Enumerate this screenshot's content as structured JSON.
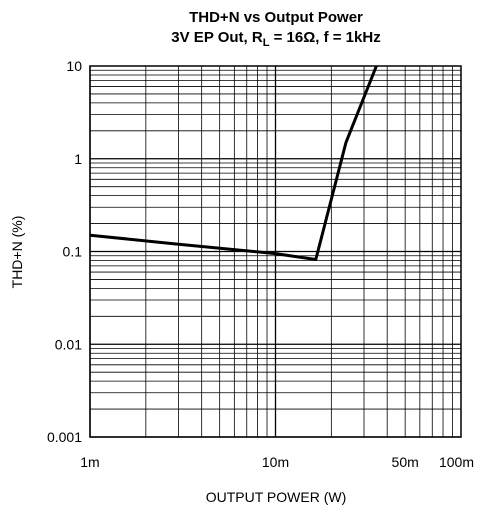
{
  "chart_data": {
    "type": "line",
    "title_line1": "THD+N vs Output Power",
    "title_line2": {
      "prefix": "3V EP Out, R",
      "sub": "L",
      "suffix": " = 16Ω, f = 1kHz"
    },
    "xlabel": "OUTPUT POWER (W)",
    "ylabel": "THD+N (%)",
    "x_scale": "log",
    "y_scale": "log",
    "xlim": [
      0.001,
      0.1
    ],
    "ylim": [
      0.001,
      10
    ],
    "grid": true,
    "x_ticks": [
      {
        "value": 0.001,
        "label": "1m"
      },
      {
        "value": 0.01,
        "label": "10m"
      },
      {
        "value": 0.05,
        "label": "50m"
      },
      {
        "value": 0.1,
        "label": "100m"
      }
    ],
    "y_ticks": [
      {
        "value": 10,
        "label": "10"
      },
      {
        "value": 1,
        "label": "1"
      },
      {
        "value": 0.1,
        "label": "0.1"
      },
      {
        "value": 0.01,
        "label": "0.01"
      },
      {
        "value": 0.001,
        "label": "0.001"
      }
    ],
    "series": [
      {
        "color": "#000000",
        "points": [
          {
            "x": 0.001,
            "y": 0.15
          },
          {
            "x": 0.003,
            "y": 0.12
          },
          {
            "x": 0.01,
            "y": 0.095
          },
          {
            "x": 0.0165,
            "y": 0.082
          },
          {
            "x": 0.024,
            "y": 1.5
          },
          {
            "x": 0.035,
            "y": 10
          }
        ]
      }
    ]
  }
}
